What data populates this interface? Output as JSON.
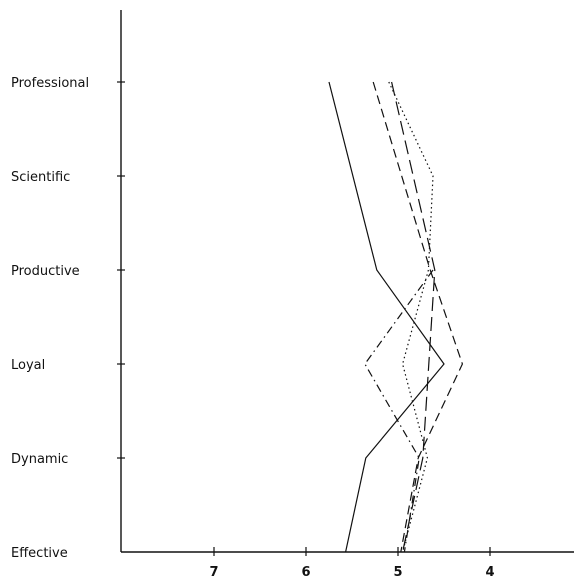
{
  "chart_data": {
    "type": "line",
    "orientation": "horizontal-profile",
    "categories": [
      "Professional",
      "Scientific",
      "Productive",
      "Loyal",
      "Dynamic",
      "Effective"
    ],
    "x_ticks": [
      7,
      6,
      5,
      4
    ],
    "x_axis_reversed": true,
    "xlim": [
      8,
      3.2
    ],
    "grid": false,
    "legend": "none",
    "series": [
      {
        "line_style": "solid",
        "values": [
          5.75,
          null,
          5.23,
          4.5,
          5.35,
          5.57
        ]
      },
      {
        "line_style": "dashed",
        "values": [
          5.27,
          null,
          4.65,
          4.3,
          4.78,
          4.97
        ]
      },
      {
        "line_style": "long-dashed",
        "values": [
          5.07,
          null,
          4.6,
          null,
          4.73,
          4.95
        ]
      },
      {
        "line_style": "dotted",
        "values": [
          5.1,
          4.62,
          4.67,
          4.95,
          4.68,
          4.95
        ]
      },
      {
        "line_style": "dash-dot",
        "values": [
          null,
          null,
          4.62,
          5.36,
          4.77,
          4.93
        ]
      }
    ]
  }
}
